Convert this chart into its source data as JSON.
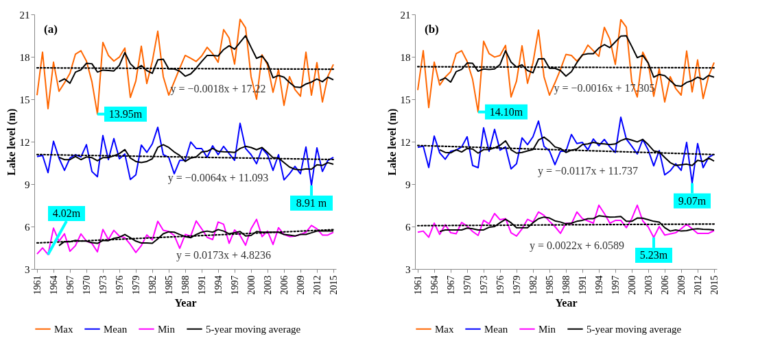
{
  "chart_data": [
    {
      "type": "line",
      "title": "(a)",
      "xlabel": "Year",
      "ylabel": "Lake level  (m)",
      "legend": "bottom",
      "x": [
        1961,
        1962,
        1963,
        1964,
        1965,
        1966,
        1967,
        1968,
        1969,
        1970,
        1971,
        1972,
        1973,
        1974,
        1975,
        1976,
        1977,
        1978,
        1979,
        1980,
        1981,
        1982,
        1983,
        1984,
        1985,
        1986,
        1987,
        1988,
        1989,
        1990,
        1991,
        1992,
        1993,
        1994,
        1995,
        1996,
        1997,
        1998,
        1999,
        2000,
        2001,
        2002,
        2003,
        2004,
        2005,
        2006,
        2007,
        2008,
        2009,
        2010,
        2011,
        2012,
        2013,
        2014,
        2015
      ],
      "xlim": [
        1960.5,
        2015.5
      ],
      "xticks": [
        1961,
        1964,
        1967,
        1970,
        1973,
        1976,
        1979,
        1982,
        1985,
        1988,
        1991,
        1994,
        1997,
        2000,
        2003,
        2006,
        2009,
        2012,
        2015
      ],
      "ylim": [
        3,
        21
      ],
      "yticks": [
        3,
        6,
        9,
        12,
        15,
        18,
        21
      ],
      "series": [
        {
          "name": "Max",
          "color": "#ff6600",
          "values": [
            15.29,
            18.33,
            14.33,
            17.62,
            15.56,
            16.16,
            16.84,
            18.19,
            18.43,
            17.7,
            16.24,
            13.95,
            19.02,
            18.1,
            17.7,
            17.98,
            18.62,
            15.13,
            16.29,
            18.75,
            16.11,
            17.67,
            19.81,
            16.6,
            15.29,
            16.24,
            17.19,
            18.1,
            17.9,
            17.67,
            18.06,
            18.67,
            18.22,
            17.62,
            19.92,
            19.33,
            17.48,
            20.65,
            20.05,
            16.6,
            15.0,
            18.14,
            17.43,
            15.49,
            17.11,
            14.57,
            16.6,
            15.68,
            15.21,
            18.33,
            15.29,
            17.59,
            14.81,
            16.63,
            17.46
          ]
        },
        {
          "name": "Mean",
          "color": "#0000ff",
          "values": [
            10.95,
            11.03,
            9.81,
            12.03,
            10.84,
            9.97,
            10.84,
            11.08,
            10.92,
            11.79,
            9.89,
            9.52,
            12.43,
            10.73,
            12.22,
            10.79,
            11.13,
            9.33,
            9.65,
            11.76,
            11.24,
            11.84,
            13.02,
            11.08,
            10.89,
            9.73,
            10.68,
            10.68,
            11.98,
            11.52,
            11.52,
            10.89,
            11.71,
            11.08,
            11.67,
            11.16,
            10.68,
            13.3,
            11.52,
            11.08,
            10.44,
            11.52,
            11.08,
            9.97,
            11.08,
            9.3,
            9.73,
            10.25,
            9.73,
            11.63,
            8.91,
            11.56,
            9.89,
            10.68,
            10.89
          ]
        },
        {
          "name": "Min",
          "color": "#ff00ff",
          "values": [
            4.06,
            4.49,
            4.02,
            5.89,
            4.97,
            5.49,
            4.25,
            4.65,
            5.48,
            4.97,
            4.81,
            4.21,
            5.79,
            5.08,
            5.73,
            5.32,
            5.21,
            4.73,
            4.17,
            4.65,
            5.41,
            5.05,
            6.37,
            5.73,
            5.65,
            5.37,
            4.46,
            5.44,
            5.33,
            6.4,
            5.84,
            5.24,
            5.08,
            6.32,
            6.16,
            4.81,
            5.76,
            5.37,
            4.68,
            5.84,
            6.51,
            5.29,
            5.68,
            4.73,
            5.92,
            5.44,
            5.29,
            5.32,
            5.44,
            5.6,
            6.08,
            5.84,
            5.4,
            5.4,
            5.6
          ]
        },
        {
          "name": "5-year moving average",
          "color": "#000000",
          "x": [
            1965,
            1966,
            1967,
            1968,
            1969,
            1970,
            1971,
            1972,
            1973,
            1974,
            1975,
            1976,
            1977,
            1978,
            1979,
            1980,
            1981,
            1982,
            1983,
            1984,
            1985,
            1986,
            1987,
            1988,
            1989,
            1990,
            1991,
            1992,
            1993,
            1994,
            1995,
            1996,
            1997,
            1998,
            1999,
            2000,
            2001,
            2002,
            2003,
            2004,
            2005,
            2006,
            2007,
            2008,
            2009,
            2010,
            2011,
            2012,
            2013,
            2014,
            2015
          ],
          "values": [
            16.24,
            16.44,
            16.13,
            16.92,
            17.08,
            17.54,
            17.51,
            16.92,
            17.06,
            17.03,
            17.0,
            17.4,
            18.3,
            17.51,
            17.14,
            17.38,
            17.03,
            16.83,
            17.78,
            17.83,
            17.14,
            17.14,
            16.98,
            16.63,
            16.79,
            17.19,
            17.67,
            18.1,
            18.1,
            18.06,
            18.51,
            18.78,
            18.54,
            19.02,
            19.49,
            18.67,
            17.89,
            18.06,
            17.56,
            16.52,
            16.68,
            16.56,
            16.19,
            15.87,
            15.84,
            16.08,
            16.21,
            16.43,
            16.24,
            16.56,
            16.37
          ]
        },
        {
          "color": "#000000",
          "x": [
            1965,
            1966,
            1967,
            1968,
            1969,
            1970,
            1971,
            1972,
            1973,
            1974,
            1975,
            1976,
            1977,
            1978,
            1979,
            1980,
            1981,
            1982,
            1983,
            1984,
            1985,
            1986,
            1987,
            1988,
            1989,
            1990,
            1991,
            1992,
            1993,
            1994,
            1995,
            1996,
            1997,
            1998,
            1999,
            2000,
            2001,
            2002,
            2003,
            2004,
            2005,
            2006,
            2007,
            2008,
            2009,
            2010,
            2011,
            2012,
            2013,
            2014,
            2015
          ],
          "values": [
            10.89,
            10.73,
            10.73,
            10.95,
            10.73,
            10.92,
            10.87,
            10.65,
            10.87,
            10.87,
            11.0,
            11.16,
            11.44,
            10.84,
            10.6,
            10.52,
            10.6,
            10.79,
            11.59,
            11.79,
            11.59,
            11.27,
            11.03,
            10.6,
            10.84,
            10.92,
            11.27,
            11.32,
            11.52,
            11.32,
            11.29,
            11.27,
            11.24,
            11.52,
            11.67,
            11.59,
            11.43,
            11.59,
            11.24,
            10.87,
            10.84,
            10.52,
            10.21,
            10.05,
            10.0,
            10.08,
            10.05,
            10.37,
            10.32,
            10.52,
            10.4
          ]
        },
        {
          "color": "#000000",
          "x": [
            1965,
            1966,
            1967,
            1968,
            1969,
            1970,
            1971,
            1972,
            1973,
            1974,
            1975,
            1976,
            1977,
            1978,
            1979,
            1980,
            1981,
            1982,
            1983,
            1984,
            1985,
            1986,
            1987,
            1988,
            1989,
            1990,
            1991,
            1992,
            1993,
            1994,
            1995,
            1996,
            1997,
            1998,
            1999,
            2000,
            2001,
            2002,
            2003,
            2004,
            2005,
            2006,
            2007,
            2008,
            2009,
            2010,
            2011,
            2012,
            2013,
            2014,
            2015
          ],
          "values": [
            4.65,
            4.94,
            4.92,
            5.02,
            4.97,
            4.97,
            4.86,
            4.81,
            5.02,
            5.0,
            5.17,
            5.24,
            5.44,
            5.21,
            4.97,
            4.84,
            4.84,
            4.81,
            5.13,
            5.49,
            5.63,
            5.6,
            5.44,
            5.29,
            5.21,
            5.44,
            5.6,
            5.68,
            5.6,
            5.79,
            5.68,
            5.49,
            5.56,
            5.65,
            5.33,
            5.37,
            5.65,
            5.6,
            5.6,
            5.6,
            5.6,
            5.44,
            5.4,
            5.33,
            5.44,
            5.44,
            5.56,
            5.68,
            5.68,
            5.68,
            5.68
          ]
        },
        {
          "type": "line",
          "color": "#000000",
          "line_style": "dotted",
          "x": [
            1961,
            2015
          ],
          "values": [
            17.22,
            17.12
          ]
        },
        {
          "type": "line",
          "color": "#000000",
          "line_style": "dotted",
          "x": [
            1961,
            2015
          ],
          "values": [
            11.09,
            10.74
          ]
        },
        {
          "type": "line",
          "color": "#000000",
          "line_style": "dotted",
          "x": [
            1961,
            2015
          ],
          "values": [
            4.84,
            5.78
          ]
        }
      ],
      "annotations": [
        {
          "text": "13.95m",
          "x": 1972,
          "y": 13.95
        },
        {
          "text": "4.02m",
          "x": 1963,
          "y": 4.02
        },
        {
          "text": "8.91 m",
          "x": 2011,
          "y": 8.91
        },
        {
          "text": "y = −0.0018x + 17.22",
          "x": 1994,
          "y": 17.16
        },
        {
          "text": "y = −0.0064x + 11.093",
          "x": 1994,
          "y": 10.88
        },
        {
          "text": "y = 0.0173x + 4.8236",
          "x": 1995,
          "y": 5.43
        }
      ]
    },
    {
      "type": "line",
      "title": "(b)",
      "xlabel": "Year",
      "ylabel": "Lake level  (m)",
      "legend": "bottom",
      "x": [
        1961,
        1962,
        1963,
        1964,
        1965,
        1966,
        1967,
        1968,
        1969,
        1970,
        1971,
        1972,
        1973,
        1974,
        1975,
        1976,
        1977,
        1978,
        1979,
        1980,
        1981,
        1982,
        1983,
        1984,
        1985,
        1986,
        1987,
        1988,
        1989,
        1990,
        1991,
        1992,
        1993,
        1994,
        1995,
        1996,
        1997,
        1998,
        1999,
        2000,
        2001,
        2002,
        2003,
        2004,
        2005,
        2006,
        2007,
        2008,
        2009,
        2010,
        2011,
        2012,
        2013,
        2014,
        2015
      ],
      "xlim": [
        1960.5,
        2015.5
      ],
      "xticks": [
        1961,
        1964,
        1967,
        1970,
        1973,
        1976,
        1979,
        1982,
        1985,
        1988,
        1991,
        1994,
        1997,
        2000,
        2003,
        2006,
        2009,
        2012,
        2015
      ],
      "ylim": [
        3,
        21
      ],
      "yticks": [
        3,
        6,
        9,
        12,
        15,
        18,
        21
      ],
      "series": [
        {
          "name": "Max",
          "color": "#ff6600",
          "values": [
            15.65,
            18.43,
            14.41,
            17.63,
            16.0,
            16.56,
            16.95,
            18.22,
            18.43,
            17.67,
            16.4,
            14.1,
            19.1,
            18.22,
            17.98,
            18.1,
            18.81,
            15.16,
            16.29,
            18.78,
            16.13,
            17.59,
            19.89,
            16.6,
            15.29,
            16.16,
            17.1,
            18.17,
            18.1,
            17.7,
            18.1,
            18.83,
            18.43,
            18.03,
            20.08,
            19.25,
            17.46,
            20.63,
            20.1,
            16.24,
            15.16,
            18.33,
            17.56,
            15.21,
            17.14,
            14.81,
            16.6,
            15.76,
            15.29,
            18.41,
            15.52,
            17.78,
            15.05,
            16.63,
            17.59
          ]
        },
        {
          "name": "Mean",
          "color": "#0000ff",
          "values": [
            11.6,
            11.68,
            10.17,
            12.4,
            11.21,
            10.76,
            11.32,
            11.4,
            11.63,
            12.35,
            10.32,
            10.16,
            12.98,
            11.32,
            12.87,
            11.4,
            11.63,
            10.08,
            10.44,
            12.27,
            11.79,
            12.35,
            13.46,
            11.67,
            11.35,
            10.37,
            11.32,
            11.32,
            12.51,
            11.87,
            11.95,
            11.43,
            12.19,
            11.71,
            12.16,
            11.63,
            11.24,
            13.73,
            12.19,
            11.68,
            11.13,
            12.16,
            11.4,
            10.29,
            11.37,
            9.65,
            9.94,
            10.44,
            9.97,
            11.95,
            9.07,
            11.87,
            10.16,
            10.89,
            11.11
          ]
        },
        {
          "name": "Min",
          "color": "#ff00ff",
          "values": [
            5.6,
            5.68,
            5.24,
            6.24,
            5.44,
            6.13,
            5.56,
            5.49,
            6.29,
            6.03,
            5.65,
            5.37,
            6.44,
            6.19,
            6.92,
            6.48,
            6.56,
            5.56,
            5.33,
            5.84,
            6.51,
            6.32,
            7.03,
            6.79,
            6.37,
            6.0,
            5.52,
            6.24,
            6.19,
            7.03,
            6.56,
            6.4,
            6.24,
            7.51,
            6.92,
            6.24,
            6.43,
            6.44,
            5.92,
            6.56,
            7.51,
            6.4,
            5.97,
            5.23,
            6.0,
            5.4,
            5.48,
            5.56,
            5.84,
            6.16,
            5.84,
            5.52,
            5.52,
            5.52,
            5.71
          ]
        },
        {
          "name": "5-year moving average",
          "color": "#000000",
          "x": [
            1965,
            1966,
            1967,
            1968,
            1969,
            1970,
            1971,
            1972,
            1973,
            1974,
            1975,
            1976,
            1977,
            1978,
            1979,
            1980,
            1981,
            1982,
            1983,
            1984,
            1985,
            1986,
            1987,
            1988,
            1989,
            1990,
            1991,
            1992,
            1993,
            1994,
            1995,
            1996,
            1997,
            1998,
            1999,
            2000,
            2001,
            2002,
            2003,
            2004,
            2005,
            2006,
            2007,
            2008,
            2009,
            2010,
            2011,
            2012,
            2013,
            2014,
            2015
          ],
          "values": [
            16.32,
            16.51,
            16.21,
            16.95,
            17.11,
            17.56,
            17.54,
            16.98,
            17.14,
            17.11,
            17.14,
            17.46,
            18.43,
            17.62,
            17.27,
            17.43,
            17.03,
            16.87,
            17.86,
            17.87,
            17.19,
            17.19,
            17.03,
            16.63,
            16.95,
            17.59,
            18.14,
            18.22,
            18.22,
            18.62,
            18.86,
            18.65,
            19.05,
            19.46,
            19.49,
            18.73,
            17.94,
            18.1,
            17.56,
            16.56,
            16.75,
            16.67,
            16.32,
            15.97,
            15.92,
            16.19,
            16.32,
            16.56,
            16.4,
            16.68,
            16.56
          ]
        },
        {
          "color": "#000000",
          "x": [
            1965,
            1966,
            1967,
            1968,
            1969,
            1970,
            1971,
            1972,
            1973,
            1974,
            1975,
            1976,
            1977,
            1978,
            1979,
            1980,
            1981,
            1982,
            1983,
            1984,
            1985,
            1986,
            1987,
            1988,
            1989,
            1990,
            1991,
            1992,
            1993,
            1994,
            1995,
            1996,
            1997,
            1998,
            1999,
            2000,
            2001,
            2002,
            2003,
            2004,
            2005,
            2006,
            2007,
            2008,
            2009,
            2010,
            2011,
            2012,
            2013,
            2014,
            2015
          ],
          "values": [
            11.43,
            11.24,
            11.21,
            11.43,
            11.27,
            11.52,
            11.48,
            11.19,
            11.44,
            11.44,
            11.56,
            11.75,
            12.06,
            11.43,
            11.19,
            11.24,
            11.35,
            11.44,
            12.11,
            12.32,
            12.03,
            11.63,
            11.52,
            11.24,
            11.4,
            11.48,
            11.79,
            11.84,
            11.95,
            11.87,
            11.84,
            11.79,
            11.84,
            12.08,
            12.22,
            12.11,
            11.98,
            12.16,
            11.79,
            11.35,
            11.27,
            10.89,
            10.52,
            10.32,
            10.37,
            10.41,
            10.32,
            10.68,
            10.6,
            10.84,
            10.63
          ]
        },
        {
          "color": "#000000",
          "x": [
            1965,
            1966,
            1967,
            1968,
            1969,
            1970,
            1971,
            1972,
            1973,
            1974,
            1975,
            1976,
            1977,
            1978,
            1979,
            1980,
            1981,
            1982,
            1983,
            1984,
            1985,
            1986,
            1987,
            1988,
            1989,
            1990,
            1991,
            1992,
            1993,
            1994,
            1995,
            1996,
            1997,
            1998,
            1999,
            2000,
            2001,
            2002,
            2003,
            2004,
            2005,
            2006,
            2007,
            2008,
            2009,
            2010,
            2011,
            2012,
            2013,
            2014,
            2015
          ],
          "values": [
            5.65,
            5.76,
            5.76,
            5.76,
            5.76,
            5.89,
            5.84,
            5.76,
            5.76,
            5.95,
            6.0,
            6.27,
            6.51,
            6.27,
            5.92,
            5.92,
            5.92,
            6.27,
            6.56,
            6.67,
            6.6,
            6.4,
            6.32,
            6.19,
            6.24,
            6.37,
            6.44,
            6.56,
            6.56,
            6.76,
            6.71,
            6.67,
            6.68,
            6.71,
            6.37,
            6.37,
            6.6,
            6.59,
            6.48,
            6.37,
            6.32,
            5.92,
            5.68,
            5.76,
            5.68,
            5.71,
            5.81,
            5.84,
            5.81,
            5.79,
            5.76
          ]
        },
        {
          "type": "line",
          "color": "#000000",
          "line_style": "dotted",
          "x": [
            1961,
            2015
          ],
          "values": [
            17.3,
            17.22
          ]
        },
        {
          "type": "line",
          "color": "#000000",
          "line_style": "dotted",
          "x": [
            1961,
            2015
          ],
          "values": [
            11.73,
            11.09
          ]
        },
        {
          "type": "line",
          "color": "#000000",
          "line_style": "dotted",
          "x": [
            1961,
            2015
          ],
          "values": [
            6.06,
            6.18
          ]
        }
      ],
      "annotations": [
        {
          "text": "14.10m",
          "x": 1972,
          "y": 14.1
        },
        {
          "text": "9.07m",
          "x": 2011,
          "y": 9.07
        },
        {
          "text": "5.23m",
          "x": 2004,
          "y": 5.23
        },
        {
          "text": "y = −0.0016x + 17.305",
          "x": 1995,
          "y": 17.25
        },
        {
          "text": "y = −0.0117x + 11.737",
          "x": 1992,
          "y": 11.36
        },
        {
          "text": "y = 0.0022x + 6.0589",
          "x": 1990,
          "y": 6.12
        }
      ]
    }
  ]
}
